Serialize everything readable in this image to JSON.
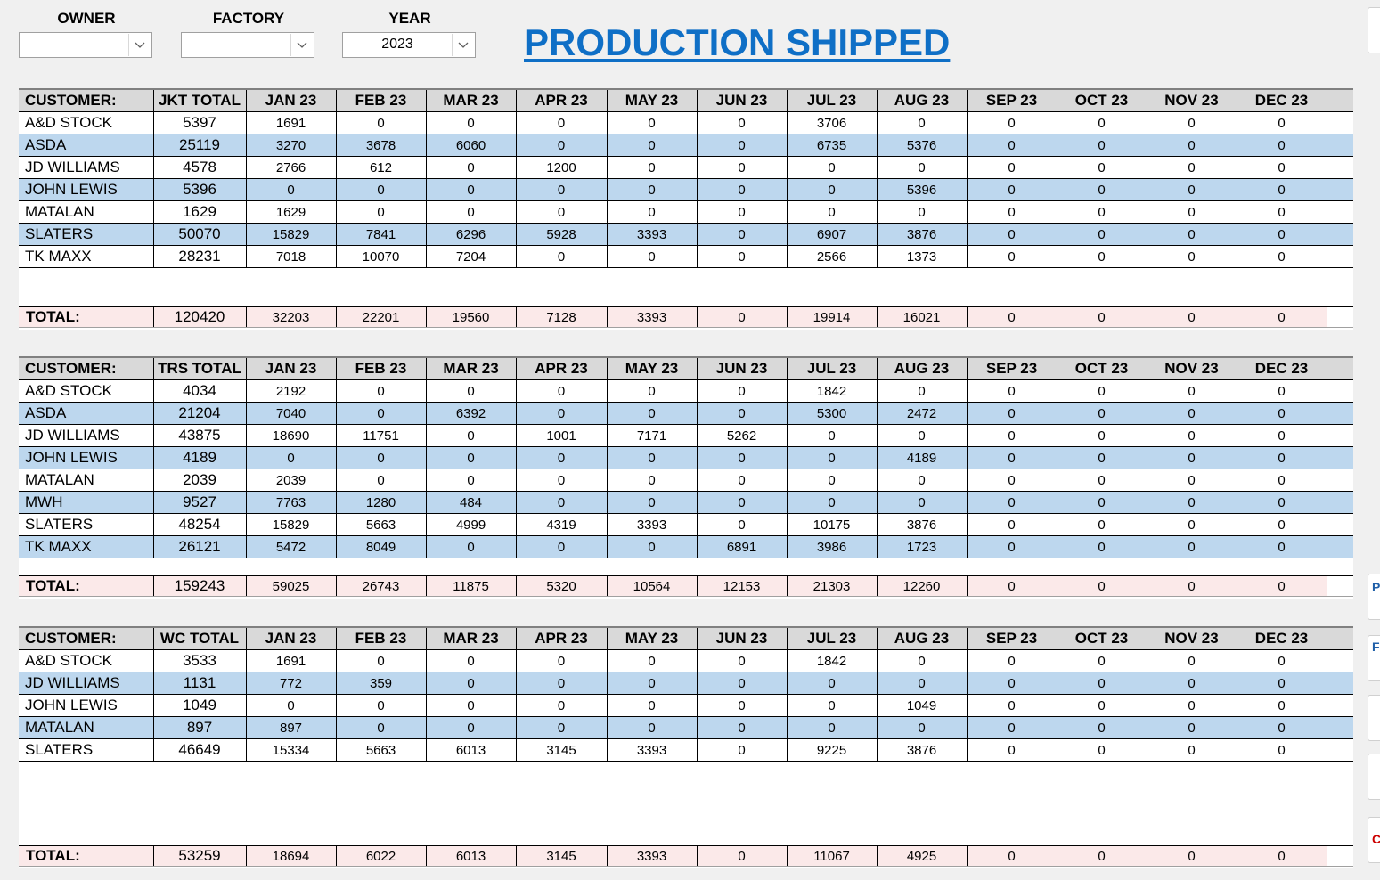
{
  "filters": {
    "owner": {
      "label": "OWNER",
      "value": ""
    },
    "factory": {
      "label": "FACTORY",
      "value": ""
    },
    "year": {
      "label": "YEAR",
      "value": "2023"
    }
  },
  "title": "PRODUCTION SHIPPED",
  "months": [
    "JAN 23",
    "FEB 23",
    "MAR 23",
    "APR 23",
    "MAY 23",
    "JUN 23",
    "JUL 23",
    "AUG 23",
    "SEP 23",
    "OCT 23",
    "NOV 23",
    "DEC 23"
  ],
  "sections": [
    {
      "customer_header": "CUSTOMER:",
      "total_header": "JKT TOTAL",
      "rows": [
        {
          "customer": "A&D STOCK",
          "total": "5397",
          "values": [
            "1691",
            "0",
            "0",
            "0",
            "0",
            "0",
            "3706",
            "0",
            "0",
            "0",
            "0",
            "0"
          ]
        },
        {
          "customer": "ASDA",
          "total": "25119",
          "values": [
            "3270",
            "3678",
            "6060",
            "0",
            "0",
            "0",
            "6735",
            "5376",
            "0",
            "0",
            "0",
            "0"
          ]
        },
        {
          "customer": "JD WILLIAMS",
          "total": "4578",
          "values": [
            "2766",
            "612",
            "0",
            "1200",
            "0",
            "0",
            "0",
            "0",
            "0",
            "0",
            "0",
            "0"
          ]
        },
        {
          "customer": "JOHN LEWIS",
          "total": "5396",
          "values": [
            "0",
            "0",
            "0",
            "0",
            "0",
            "0",
            "0",
            "5396",
            "0",
            "0",
            "0",
            "0"
          ]
        },
        {
          "customer": "MATALAN",
          "total": "1629",
          "values": [
            "1629",
            "0",
            "0",
            "0",
            "0",
            "0",
            "0",
            "0",
            "0",
            "0",
            "0",
            "0"
          ]
        },
        {
          "customer": "SLATERS",
          "total": "50070",
          "values": [
            "15829",
            "7841",
            "6296",
            "5928",
            "3393",
            "0",
            "6907",
            "3876",
            "0",
            "0",
            "0",
            "0"
          ]
        },
        {
          "customer": "TK MAXX",
          "total": "28231",
          "values": [
            "7018",
            "10070",
            "7204",
            "0",
            "0",
            "0",
            "2566",
            "1373",
            "0",
            "0",
            "0",
            "0"
          ]
        }
      ],
      "totals": {
        "label": "TOTAL:",
        "total": "120420",
        "values": [
          "32203",
          "22201",
          "19560",
          "7128",
          "3393",
          "0",
          "19914",
          "16021",
          "0",
          "0",
          "0",
          "0"
        ]
      }
    },
    {
      "customer_header": "CUSTOMER:",
      "total_header": "TRS TOTAL",
      "rows": [
        {
          "customer": "A&D STOCK",
          "total": "4034",
          "values": [
            "2192",
            "0",
            "0",
            "0",
            "0",
            "0",
            "1842",
            "0",
            "0",
            "0",
            "0",
            "0"
          ]
        },
        {
          "customer": "ASDA",
          "total": "21204",
          "values": [
            "7040",
            "0",
            "6392",
            "0",
            "0",
            "0",
            "5300",
            "2472",
            "0",
            "0",
            "0",
            "0"
          ]
        },
        {
          "customer": "JD WILLIAMS",
          "total": "43875",
          "values": [
            "18690",
            "11751",
            "0",
            "1001",
            "7171",
            "5262",
            "0",
            "0",
            "0",
            "0",
            "0",
            "0"
          ]
        },
        {
          "customer": "JOHN LEWIS",
          "total": "4189",
          "values": [
            "0",
            "0",
            "0",
            "0",
            "0",
            "0",
            "0",
            "4189",
            "0",
            "0",
            "0",
            "0"
          ]
        },
        {
          "customer": "MATALAN",
          "total": "2039",
          "values": [
            "2039",
            "0",
            "0",
            "0",
            "0",
            "0",
            "0",
            "0",
            "0",
            "0",
            "0",
            "0"
          ]
        },
        {
          "customer": "MWH",
          "total": "9527",
          "values": [
            "7763",
            "1280",
            "484",
            "0",
            "0",
            "0",
            "0",
            "0",
            "0",
            "0",
            "0",
            "0"
          ]
        },
        {
          "customer": "SLATERS",
          "total": "48254",
          "values": [
            "15829",
            "5663",
            "4999",
            "4319",
            "3393",
            "0",
            "10175",
            "3876",
            "0",
            "0",
            "0",
            "0"
          ]
        },
        {
          "customer": "TK MAXX",
          "total": "26121",
          "values": [
            "5472",
            "8049",
            "0",
            "0",
            "0",
            "6891",
            "3986",
            "1723",
            "0",
            "0",
            "0",
            "0"
          ]
        }
      ],
      "totals": {
        "label": "TOTAL:",
        "total": "159243",
        "values": [
          "59025",
          "26743",
          "11875",
          "5320",
          "10564",
          "12153",
          "21303",
          "12260",
          "0",
          "0",
          "0",
          "0"
        ]
      }
    },
    {
      "customer_header": "CUSTOMER:",
      "total_header": "WC TOTAL",
      "rows": [
        {
          "customer": "A&D STOCK",
          "total": "3533",
          "values": [
            "1691",
            "0",
            "0",
            "0",
            "0",
            "0",
            "1842",
            "0",
            "0",
            "0",
            "0",
            "0"
          ]
        },
        {
          "customer": "JD WILLIAMS",
          "total": "1131",
          "values": [
            "772",
            "359",
            "0",
            "0",
            "0",
            "0",
            "0",
            "0",
            "0",
            "0",
            "0",
            "0"
          ]
        },
        {
          "customer": "JOHN LEWIS",
          "total": "1049",
          "values": [
            "0",
            "0",
            "0",
            "0",
            "0",
            "0",
            "0",
            "1049",
            "0",
            "0",
            "0",
            "0"
          ]
        },
        {
          "customer": "MATALAN",
          "total": "897",
          "values": [
            "897",
            "0",
            "0",
            "0",
            "0",
            "0",
            "0",
            "0",
            "0",
            "0",
            "0",
            "0"
          ]
        },
        {
          "customer": "SLATERS",
          "total": "46649",
          "values": [
            "15334",
            "5663",
            "6013",
            "3145",
            "3393",
            "0",
            "9225",
            "3876",
            "0",
            "0",
            "0",
            "0"
          ]
        }
      ],
      "totals": {
        "label": "TOTAL:",
        "total": "53259",
        "values": [
          "18694",
          "6022",
          "6013",
          "3145",
          "3393",
          "0",
          "11067",
          "4925",
          "0",
          "0",
          "0",
          "0"
        ]
      }
    }
  ],
  "side_buttons": [
    {
      "label": "",
      "color": "#000000"
    },
    {
      "label": "P",
      "color": "#1f5fa8"
    },
    {
      "label": "F",
      "color": "#1f5fa8"
    },
    {
      "label": "",
      "color": "#000000"
    },
    {
      "label": "",
      "color": "#000000"
    },
    {
      "label": "C",
      "color": "#cc0000"
    }
  ]
}
